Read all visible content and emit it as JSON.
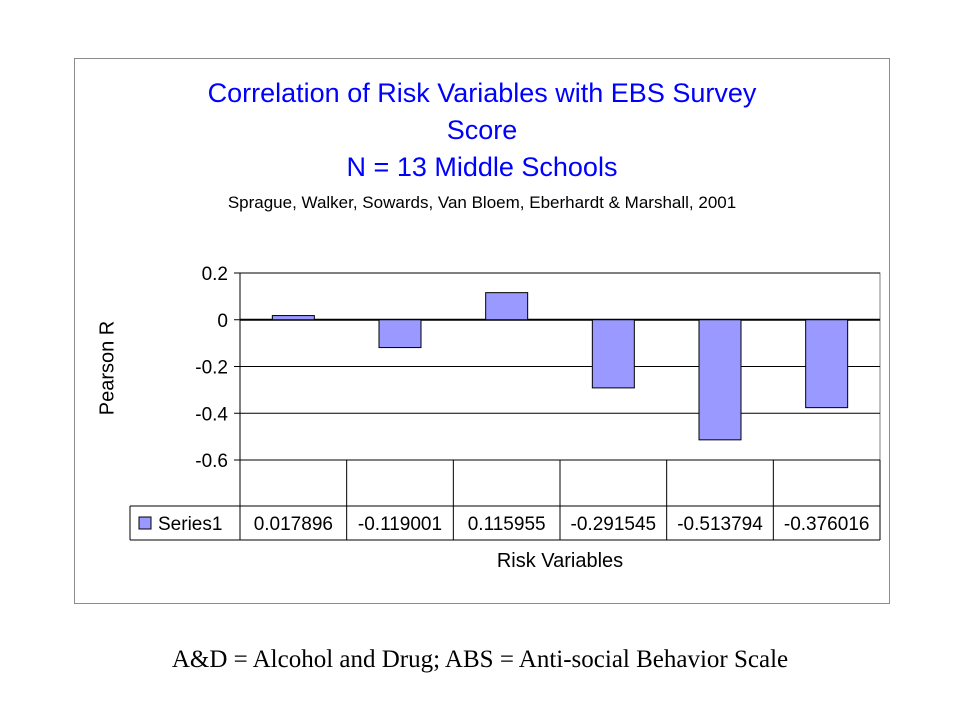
{
  "chart_data": {
    "type": "bar",
    "title_lines": [
      "Correlation of Risk Variables with EBS Survey",
      "Score",
      "N = 13 Middle Schools"
    ],
    "subtitle": "Sprague, Walker, Sowards, Van Bloem, Eberhardt & Marshall, 2001",
    "xlabel": "Risk Variables",
    "ylabel": "Pearson R",
    "ylim": [
      -0.6,
      0.2
    ],
    "yticks": [
      "0.2",
      "0",
      "-0.2",
      "-0.4",
      "-0.6"
    ],
    "series": [
      {
        "name": "Series1",
        "values": [
          0.017896,
          -0.119001,
          0.115955,
          -0.291545,
          -0.513794,
          -0.376016
        ],
        "labels": [
          "0.017896",
          "-0.119001",
          "0.115955",
          "-0.291545",
          "-0.513794",
          "-0.376016"
        ]
      }
    ],
    "colors": {
      "bar": "#9999ff",
      "bar_stroke": "#000000",
      "title": "#0000ff"
    },
    "legend": "data-table",
    "grid": true
  },
  "footnote": "A&D = Alcohol and Drug; ABS = Anti-social Behavior Scale"
}
